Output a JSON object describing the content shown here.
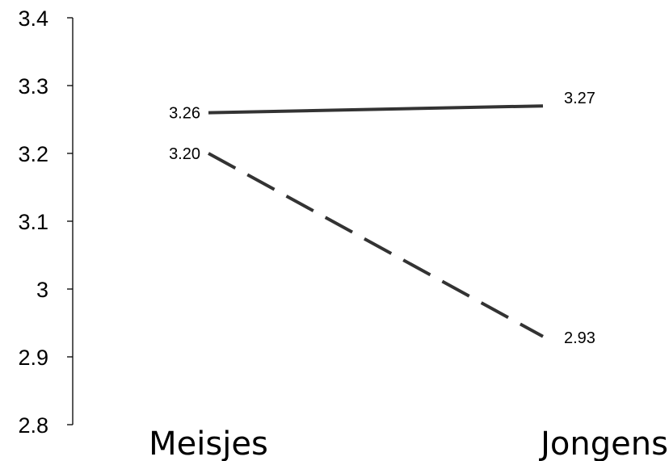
{
  "chart_data": {
    "type": "line",
    "title": "",
    "xlabel": "",
    "ylabel": "",
    "categories": [
      "Meisjes",
      "Jongens"
    ],
    "ylim": [
      2.8,
      3.4
    ],
    "yticks": [
      {
        "value": 2.8,
        "label": "2.8"
      },
      {
        "value": 2.9,
        "label": "2.9"
      },
      {
        "value": 3.0,
        "label": "3"
      },
      {
        "value": 3.1,
        "label": "3.1"
      },
      {
        "value": 3.2,
        "label": "3.2"
      },
      {
        "value": 3.3,
        "label": "3.3"
      },
      {
        "value": 3.4,
        "label": "3.4"
      }
    ],
    "grid": false,
    "legend": "none",
    "series": [
      {
        "style": "solid",
        "color": "#333333",
        "values": [
          3.26,
          3.27
        ],
        "labels": [
          "3.26",
          "3.27"
        ]
      },
      {
        "style": "dashed",
        "color": "#333333",
        "values": [
          3.2,
          2.93
        ],
        "labels": [
          "3.20",
          "2.93"
        ]
      }
    ]
  }
}
